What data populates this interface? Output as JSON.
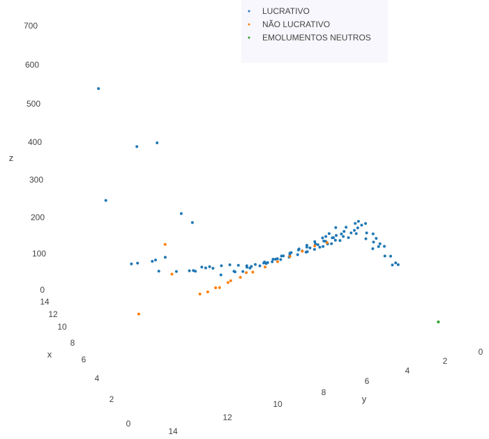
{
  "chart_data": {
    "type": "scatter3d",
    "title": "",
    "axes": {
      "z": {
        "label": "z",
        "ticks": [
          "700",
          "600",
          "500",
          "400",
          "300",
          "200",
          "100",
          "0"
        ]
      },
      "x": {
        "label": "x",
        "ticks": [
          "14",
          "12",
          "10",
          "8",
          "6",
          "4",
          "2",
          "0"
        ]
      },
      "y": {
        "label": "y",
        "ticks": [
          "14",
          "12",
          "10",
          "8",
          "6",
          "4",
          "2",
          "0"
        ]
      }
    },
    "legend": {
      "position": "top-right",
      "entries": [
        {
          "name": "LUCRATIVO",
          "color": "#1f77b4"
        },
        {
          "name": "NÃO LUCRATIVO",
          "color": "#ff7f0e"
        },
        {
          "name": "EMOLUMENTOS NEUTROS",
          "color": "#2ca02c"
        }
      ]
    },
    "series": [
      {
        "name": "LUCRATIVO",
        "color": "#1f77b4",
        "points": [
          [
            7.6,
            0.6,
            720
          ],
          [
            8.0,
            2.4,
            525
          ],
          [
            8.4,
            3.4,
            510
          ],
          [
            8.6,
            1.2,
            385
          ],
          [
            8.9,
            4.6,
            288
          ],
          [
            9.3,
            5.2,
            245
          ],
          [
            9.6,
            2.6,
            168
          ],
          [
            9.7,
            2.9,
            163
          ],
          [
            9.9,
            3.6,
            152
          ],
          [
            10.0,
            4.2,
            151
          ],
          [
            10.1,
            3.8,
            148
          ],
          [
            10.3,
            4.0,
            110
          ],
          [
            10.4,
            4.8,
            94
          ],
          [
            10.5,
            5.4,
            84
          ],
          [
            10.6,
            5.6,
            79
          ],
          [
            10.7,
            6.0,
            80
          ],
          [
            10.8,
            6.2,
            72
          ],
          [
            10.9,
            6.4,
            70
          ],
          [
            11.0,
            5.8,
            65
          ],
          [
            11.1,
            6.6,
            58
          ],
          [
            11.2,
            7.0,
            56
          ],
          [
            11.3,
            7.4,
            50
          ],
          [
            11.4,
            7.8,
            40
          ],
          [
            11.5,
            8.2,
            30
          ],
          [
            11.6,
            8.6,
            25
          ],
          [
            11.7,
            9.0,
            20
          ],
          [
            11.8,
            9.4,
            15
          ],
          [
            11.9,
            9.8,
            12
          ],
          [
            12.0,
            10.2,
            10
          ],
          [
            12.1,
            10.6,
            8
          ],
          [
            12.2,
            11.0,
            6
          ],
          [
            12.3,
            11.4,
            5
          ],
          [
            12.4,
            11.8,
            4
          ],
          [
            12.5,
            12.2,
            3
          ],
          [
            12.6,
            12.6,
            3
          ],
          [
            12.7,
            13.0,
            2
          ],
          [
            12.0,
            7.2,
            10
          ],
          [
            12.1,
            7.8,
            8
          ],
          [
            12.2,
            8.4,
            7
          ],
          [
            12.3,
            9.2,
            6
          ],
          [
            12.4,
            9.6,
            5
          ],
          [
            12.5,
            10.0,
            5
          ],
          [
            12.6,
            10.4,
            4
          ],
          [
            12.7,
            10.8,
            4
          ],
          [
            12.8,
            11.2,
            3
          ],
          [
            12.9,
            11.6,
            3
          ],
          [
            13.0,
            12.0,
            2
          ],
          [
            13.1,
            12.4,
            2
          ],
          [
            11.4,
            8.0,
            20
          ],
          [
            11.6,
            8.8,
            18
          ],
          [
            11.8,
            9.2,
            16
          ],
          [
            12.0,
            9.6,
            14
          ],
          [
            12.2,
            10.0,
            12
          ],
          [
            12.4,
            10.4,
            10
          ],
          [
            12.6,
            10.8,
            9
          ],
          [
            12.8,
            11.2,
            8
          ],
          [
            13.0,
            11.6,
            7
          ],
          [
            13.2,
            12.0,
            6
          ],
          [
            11.2,
            7.6,
            30
          ],
          [
            11.5,
            8.4,
            25
          ],
          [
            12.0,
            11.0,
            12
          ],
          [
            12.2,
            11.6,
            10
          ],
          [
            12.4,
            12.0,
            8
          ],
          [
            12.6,
            12.4,
            7
          ],
          [
            12.8,
            12.8,
            6
          ],
          [
            13.0,
            13.2,
            5
          ],
          [
            13.2,
            13.4,
            4
          ],
          [
            13.4,
            13.6,
            3
          ],
          [
            11.0,
            8.2,
            35
          ],
          [
            11.3,
            9.0,
            28
          ],
          [
            11.7,
            9.6,
            22
          ],
          [
            11.9,
            10.2,
            18
          ],
          [
            12.1,
            10.8,
            15
          ],
          [
            12.3,
            11.2,
            12
          ],
          [
            12.5,
            11.6,
            10
          ],
          [
            12.7,
            12.0,
            8
          ],
          [
            12.9,
            12.4,
            7
          ],
          [
            13.1,
            12.8,
            6
          ],
          [
            13.5,
            13.8,
            5
          ],
          [
            13.6,
            14.0,
            4
          ],
          [
            13.4,
            13.0,
            3
          ],
          [
            13.2,
            12.6,
            3
          ],
          [
            12.9,
            13.4,
            2
          ],
          [
            12.7,
            13.8,
            2
          ],
          [
            13.8,
            13.6,
            6
          ],
          [
            14.0,
            13.8,
            4
          ],
          [
            14.0,
            12.8,
            3
          ],
          [
            13.8,
            13.2,
            2
          ],
          [
            13.6,
            12.4,
            2
          ],
          [
            13.4,
            12.2,
            2
          ],
          [
            12.4,
            14.0,
            3
          ],
          [
            12.1,
            13.6,
            3
          ],
          [
            11.9,
            14.0,
            2
          ],
          [
            11.6,
            13.8,
            2
          ],
          [
            11.3,
            14.0,
            1
          ],
          [
            11.0,
            13.6,
            1
          ],
          [
            8.4,
            14.0,
            10
          ],
          [
            8.6,
            13.8,
            8
          ],
          [
            8.8,
            14.0,
            6
          ],
          [
            10.6,
            14.0,
            10
          ],
          [
            10.8,
            13.8,
            8
          ],
          [
            9.6,
            14.0,
            6
          ],
          [
            9.8,
            13.8,
            5
          ]
        ]
      },
      {
        "name": "NÃO LUCRATIVO",
        "color": "#ff7f0e",
        "points": [
          [
            9.3,
            4.0,
            205
          ],
          [
            10.4,
            4.6,
            90
          ],
          [
            10.6,
            3.2,
            0
          ],
          [
            11.0,
            6.0,
            0
          ],
          [
            11.2,
            6.4,
            -5
          ],
          [
            11.4,
            6.8,
            -5
          ],
          [
            11.5,
            7.0,
            -10
          ],
          [
            11.6,
            7.4,
            -5
          ],
          [
            11.8,
            8.0,
            -5
          ],
          [
            12.0,
            8.6,
            -5
          ],
          [
            12.2,
            9.2,
            -5
          ],
          [
            12.4,
            9.8,
            -5
          ],
          [
            12.6,
            10.4,
            -5
          ],
          [
            12.8,
            11.0,
            -5
          ],
          [
            13.0,
            11.6,
            -5
          ],
          [
            13.2,
            12.2,
            -10
          ],
          [
            11.9,
            7.6,
            -10
          ],
          [
            12.3,
            8.4,
            -10
          ]
        ]
      },
      {
        "name": "EMOLUMENTOS NEUTROS",
        "color": "#2ca02c",
        "points": [
          [
            2.0,
            14.0,
            0
          ]
        ]
      }
    ]
  }
}
